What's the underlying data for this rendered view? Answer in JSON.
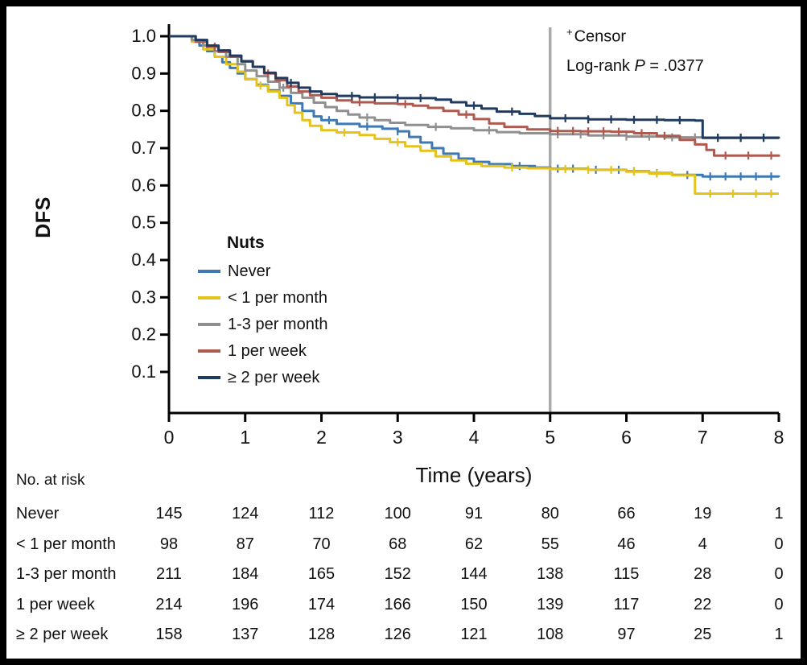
{
  "frame": {
    "background": "#ffffff",
    "border_color": "#000000"
  },
  "annotations": {
    "censor_marker": "+",
    "censor_label": "Censor",
    "logrank_prefix": "Log-rank",
    "logrank_p": "P",
    "logrank_value": "= .0377"
  },
  "legend": {
    "title": "Nuts"
  },
  "chart_data": {
    "type": "line",
    "subtype": "kaplan-meier-step",
    "title": "",
    "xlabel": "Time (years)",
    "ylabel": "DFS",
    "xlim": [
      0,
      8
    ],
    "ylim": [
      0,
      1.0
    ],
    "xticks": [
      0,
      1,
      2,
      3,
      4,
      5,
      6,
      7,
      8
    ],
    "yticks": [
      0.1,
      0.2,
      0.3,
      0.4,
      0.5,
      0.6,
      0.7,
      0.8,
      0.9,
      1.0
    ],
    "grid": false,
    "legend_position": "inside-left",
    "reference_line": {
      "x": 5,
      "color": "#ababab"
    },
    "series": [
      {
        "id": "never",
        "name": "Never",
        "color": "#3e79b4",
        "points": [
          [
            0,
            1.0
          ],
          [
            0.3,
            0.99
          ],
          [
            0.4,
            0.975
          ],
          [
            0.5,
            0.96
          ],
          [
            0.6,
            0.945
          ],
          [
            0.7,
            0.93
          ],
          [
            0.8,
            0.915
          ],
          [
            0.9,
            0.9
          ],
          [
            1.0,
            0.885
          ],
          [
            1.15,
            0.87
          ],
          [
            1.3,
            0.855
          ],
          [
            1.45,
            0.84
          ],
          [
            1.6,
            0.82
          ],
          [
            1.75,
            0.8
          ],
          [
            1.9,
            0.785
          ],
          [
            2.0,
            0.775
          ],
          [
            2.2,
            0.765
          ],
          [
            2.5,
            0.758
          ],
          [
            2.8,
            0.752
          ],
          [
            3.0,
            0.745
          ],
          [
            3.15,
            0.73
          ],
          [
            3.3,
            0.715
          ],
          [
            3.45,
            0.7
          ],
          [
            3.6,
            0.685
          ],
          [
            3.8,
            0.672
          ],
          [
            4.0,
            0.663
          ],
          [
            4.2,
            0.657
          ],
          [
            4.5,
            0.652
          ],
          [
            4.8,
            0.648
          ],
          [
            5.0,
            0.645
          ],
          [
            5.5,
            0.642
          ],
          [
            6.0,
            0.638
          ],
          [
            6.3,
            0.633
          ],
          [
            6.6,
            0.628
          ],
          [
            7.0,
            0.624
          ],
          [
            8.0,
            0.622
          ]
        ],
        "censor_x": [
          2.1,
          2.6,
          3.0,
          4.6,
          5.1,
          5.3,
          5.6,
          5.9,
          6.1,
          6.4,
          6.8,
          7.1,
          7.3,
          7.5,
          7.7,
          7.9
        ]
      },
      {
        "id": "lt1-per-month",
        "name": "< 1 per month",
        "color": "#e5c31c",
        "points": [
          [
            0,
            1.0
          ],
          [
            0.3,
            0.985
          ],
          [
            0.45,
            0.965
          ],
          [
            0.6,
            0.945
          ],
          [
            0.75,
            0.925
          ],
          [
            0.9,
            0.905
          ],
          [
            1.0,
            0.885
          ],
          [
            1.15,
            0.868
          ],
          [
            1.3,
            0.852
          ],
          [
            1.45,
            0.835
          ],
          [
            1.55,
            0.815
          ],
          [
            1.65,
            0.795
          ],
          [
            1.75,
            0.775
          ],
          [
            1.85,
            0.76
          ],
          [
            2.0,
            0.748
          ],
          [
            2.2,
            0.742
          ],
          [
            2.5,
            0.735
          ],
          [
            2.7,
            0.725
          ],
          [
            2.9,
            0.716
          ],
          [
            3.1,
            0.705
          ],
          [
            3.3,
            0.693
          ],
          [
            3.5,
            0.678
          ],
          [
            3.7,
            0.667
          ],
          [
            3.9,
            0.658
          ],
          [
            4.1,
            0.652
          ],
          [
            4.4,
            0.648
          ],
          [
            4.7,
            0.646
          ],
          [
            5.0,
            0.644
          ],
          [
            5.5,
            0.642
          ],
          [
            6.0,
            0.637
          ],
          [
            6.3,
            0.632
          ],
          [
            6.6,
            0.627
          ],
          [
            6.9,
            0.578
          ],
          [
            8.0,
            0.578
          ]
        ],
        "censor_x": [
          1.2,
          2.3,
          3.0,
          4.5,
          5.2,
          5.5,
          5.8,
          6.1,
          6.4,
          7.1,
          7.4,
          7.7,
          7.9
        ]
      },
      {
        "id": "1-3-per-month",
        "name": "1-3 per month",
        "color": "#909090",
        "points": [
          [
            0,
            1.0
          ],
          [
            0.3,
            0.99
          ],
          [
            0.45,
            0.975
          ],
          [
            0.6,
            0.96
          ],
          [
            0.75,
            0.945
          ],
          [
            0.9,
            0.925
          ],
          [
            1.0,
            0.908
          ],
          [
            1.15,
            0.893
          ],
          [
            1.3,
            0.878
          ],
          [
            1.45,
            0.862
          ],
          [
            1.6,
            0.848
          ],
          [
            1.75,
            0.835
          ],
          [
            1.9,
            0.822
          ],
          [
            2.05,
            0.81
          ],
          [
            2.2,
            0.8
          ],
          [
            2.35,
            0.79
          ],
          [
            2.5,
            0.782
          ],
          [
            2.7,
            0.775
          ],
          [
            2.9,
            0.768
          ],
          [
            3.1,
            0.762
          ],
          [
            3.4,
            0.757
          ],
          [
            3.7,
            0.753
          ],
          [
            4.0,
            0.748
          ],
          [
            4.3,
            0.743
          ],
          [
            4.6,
            0.74
          ],
          [
            5.0,
            0.737
          ],
          [
            5.5,
            0.734
          ],
          [
            6.0,
            0.731
          ],
          [
            6.5,
            0.729
          ],
          [
            7.0,
            0.727
          ],
          [
            8.0,
            0.725
          ]
        ],
        "censor_x": [
          1.5,
          2.6,
          3.5,
          4.2,
          5.1,
          5.4,
          5.7,
          6.0,
          6.3,
          6.6,
          6.9,
          7.2,
          7.5,
          7.8
        ]
      },
      {
        "id": "1-per-week",
        "name": "1 per week",
        "color": "#ad5a50",
        "points": [
          [
            0,
            1.0
          ],
          [
            0.35,
            0.985
          ],
          [
            0.5,
            0.972
          ],
          [
            0.65,
            0.958
          ],
          [
            0.8,
            0.945
          ],
          [
            0.95,
            0.932
          ],
          [
            1.1,
            0.918
          ],
          [
            1.25,
            0.9
          ],
          [
            1.4,
            0.882
          ],
          [
            1.55,
            0.865
          ],
          [
            1.7,
            0.852
          ],
          [
            1.85,
            0.842
          ],
          [
            2.0,
            0.835
          ],
          [
            2.2,
            0.828
          ],
          [
            2.4,
            0.823
          ],
          [
            2.7,
            0.82
          ],
          [
            3.0,
            0.818
          ],
          [
            3.2,
            0.814
          ],
          [
            3.4,
            0.808
          ],
          [
            3.6,
            0.8
          ],
          [
            3.8,
            0.79
          ],
          [
            4.0,
            0.778
          ],
          [
            4.2,
            0.766
          ],
          [
            4.4,
            0.757
          ],
          [
            4.7,
            0.75
          ],
          [
            5.0,
            0.746
          ],
          [
            5.4,
            0.745
          ],
          [
            5.8,
            0.744
          ],
          [
            6.1,
            0.74
          ],
          [
            6.4,
            0.733
          ],
          [
            6.7,
            0.722
          ],
          [
            6.9,
            0.71
          ],
          [
            7.05,
            0.695
          ],
          [
            7.15,
            0.68
          ],
          [
            8.0,
            0.677
          ]
        ],
        "censor_x": [
          0.6,
          1.3,
          2.5,
          3.1,
          3.9,
          5.1,
          5.3,
          5.5,
          5.7,
          5.9,
          6.2,
          6.5,
          7.3,
          7.6,
          7.9
        ]
      },
      {
        "id": "ge2-per-week",
        "name": "≥ 2 per week",
        "color": "#203b60",
        "points": [
          [
            0,
            1.0
          ],
          [
            0.35,
            0.99
          ],
          [
            0.5,
            0.975
          ],
          [
            0.65,
            0.962
          ],
          [
            0.8,
            0.948
          ],
          [
            0.95,
            0.933
          ],
          [
            1.1,
            0.918
          ],
          [
            1.25,
            0.902
          ],
          [
            1.4,
            0.888
          ],
          [
            1.55,
            0.875
          ],
          [
            1.7,
            0.862
          ],
          [
            1.85,
            0.852
          ],
          [
            2.0,
            0.845
          ],
          [
            2.2,
            0.84
          ],
          [
            2.5,
            0.836
          ],
          [
            3.0,
            0.834
          ],
          [
            3.5,
            0.83
          ],
          [
            3.7,
            0.823
          ],
          [
            3.9,
            0.814
          ],
          [
            4.1,
            0.806
          ],
          [
            4.3,
            0.798
          ],
          [
            4.6,
            0.792
          ],
          [
            4.8,
            0.786
          ],
          [
            5.0,
            0.78
          ],
          [
            5.5,
            0.777
          ],
          [
            6.0,
            0.776
          ],
          [
            6.5,
            0.775
          ],
          [
            6.9,
            0.774
          ],
          [
            7.0,
            0.728
          ],
          [
            8.0,
            0.726
          ]
        ],
        "censor_x": [
          1.6,
          2.4,
          2.7,
          3.0,
          3.3,
          4.0,
          4.5,
          5.2,
          5.5,
          5.8,
          6.1,
          6.4,
          6.7,
          7.2,
          7.5,
          7.8
        ]
      }
    ]
  },
  "risk_table": {
    "title": "No. at risk",
    "time_points": [
      0,
      1,
      2,
      3,
      4,
      5,
      6,
      7,
      8
    ],
    "rows": [
      {
        "label": "Never",
        "values": [
          145,
          124,
          112,
          100,
          91,
          80,
          66,
          19,
          1
        ]
      },
      {
        "label": "< 1 per month",
        "values": [
          98,
          87,
          70,
          68,
          62,
          55,
          46,
          4,
          0
        ]
      },
      {
        "label": "1-3 per month",
        "values": [
          211,
          184,
          165,
          152,
          144,
          138,
          115,
          28,
          0
        ]
      },
      {
        "label": "1 per week",
        "values": [
          214,
          196,
          174,
          166,
          150,
          139,
          117,
          22,
          0
        ]
      },
      {
        "label": "≥ 2 per week",
        "values": [
          158,
          137,
          128,
          126,
          121,
          108,
          97,
          25,
          1
        ]
      }
    ]
  }
}
